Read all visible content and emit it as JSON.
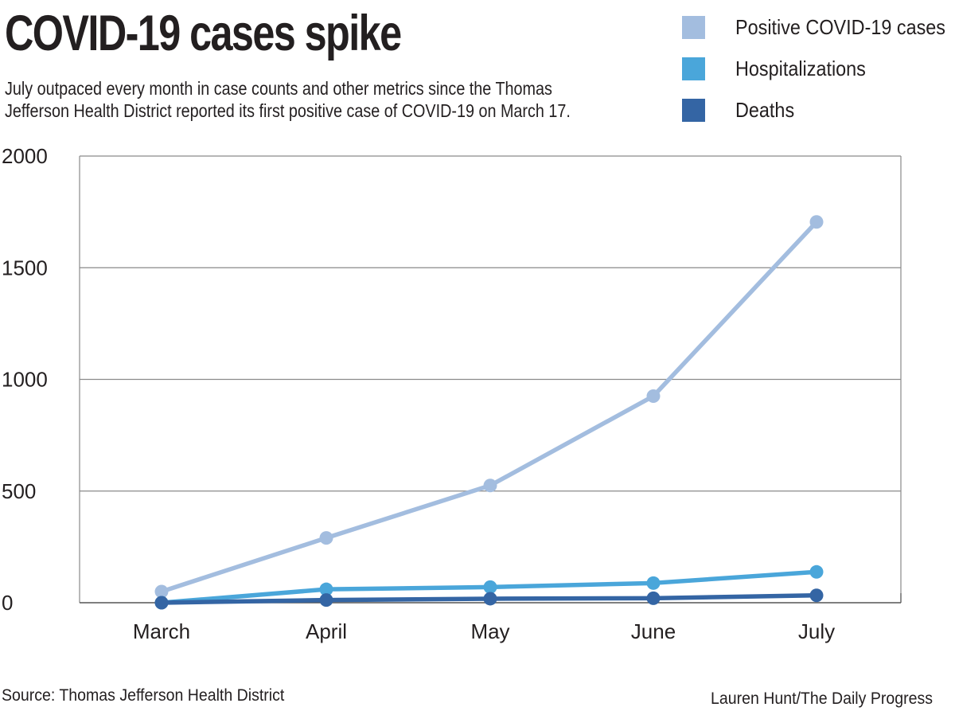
{
  "title": "COVID-19 cases spike",
  "subtitle": "July outpaced every month in case counts and other metrics since the Thomas\nJefferson Health District reported its first positive case of COVID-19 on March 17.",
  "source": "Source: Thomas Jefferson Health District",
  "credit": "Lauren Hunt/The Daily Progress",
  "chart_data": {
    "type": "line",
    "title": "COVID-19 cases spike",
    "xlabel": "",
    "ylabel": "",
    "categories": [
      "March",
      "April",
      "May",
      "June",
      "July"
    ],
    "ylim": [
      0,
      2000
    ],
    "yticks": [
      0,
      500,
      1000,
      1500,
      2000
    ],
    "grid": true,
    "legend": "top-right",
    "series": [
      {
        "name": "Positive COVID-19 cases",
        "color": "#a3bddf",
        "values": [
          50,
          290,
          525,
          925,
          1705
        ]
      },
      {
        "name": "Hospitalizations",
        "color": "#4aa6da",
        "values": [
          0,
          60,
          70,
          88,
          138
        ]
      },
      {
        "name": "Deaths",
        "color": "#3465a4",
        "values": [
          0,
          12,
          18,
          20,
          33
        ]
      }
    ]
  }
}
